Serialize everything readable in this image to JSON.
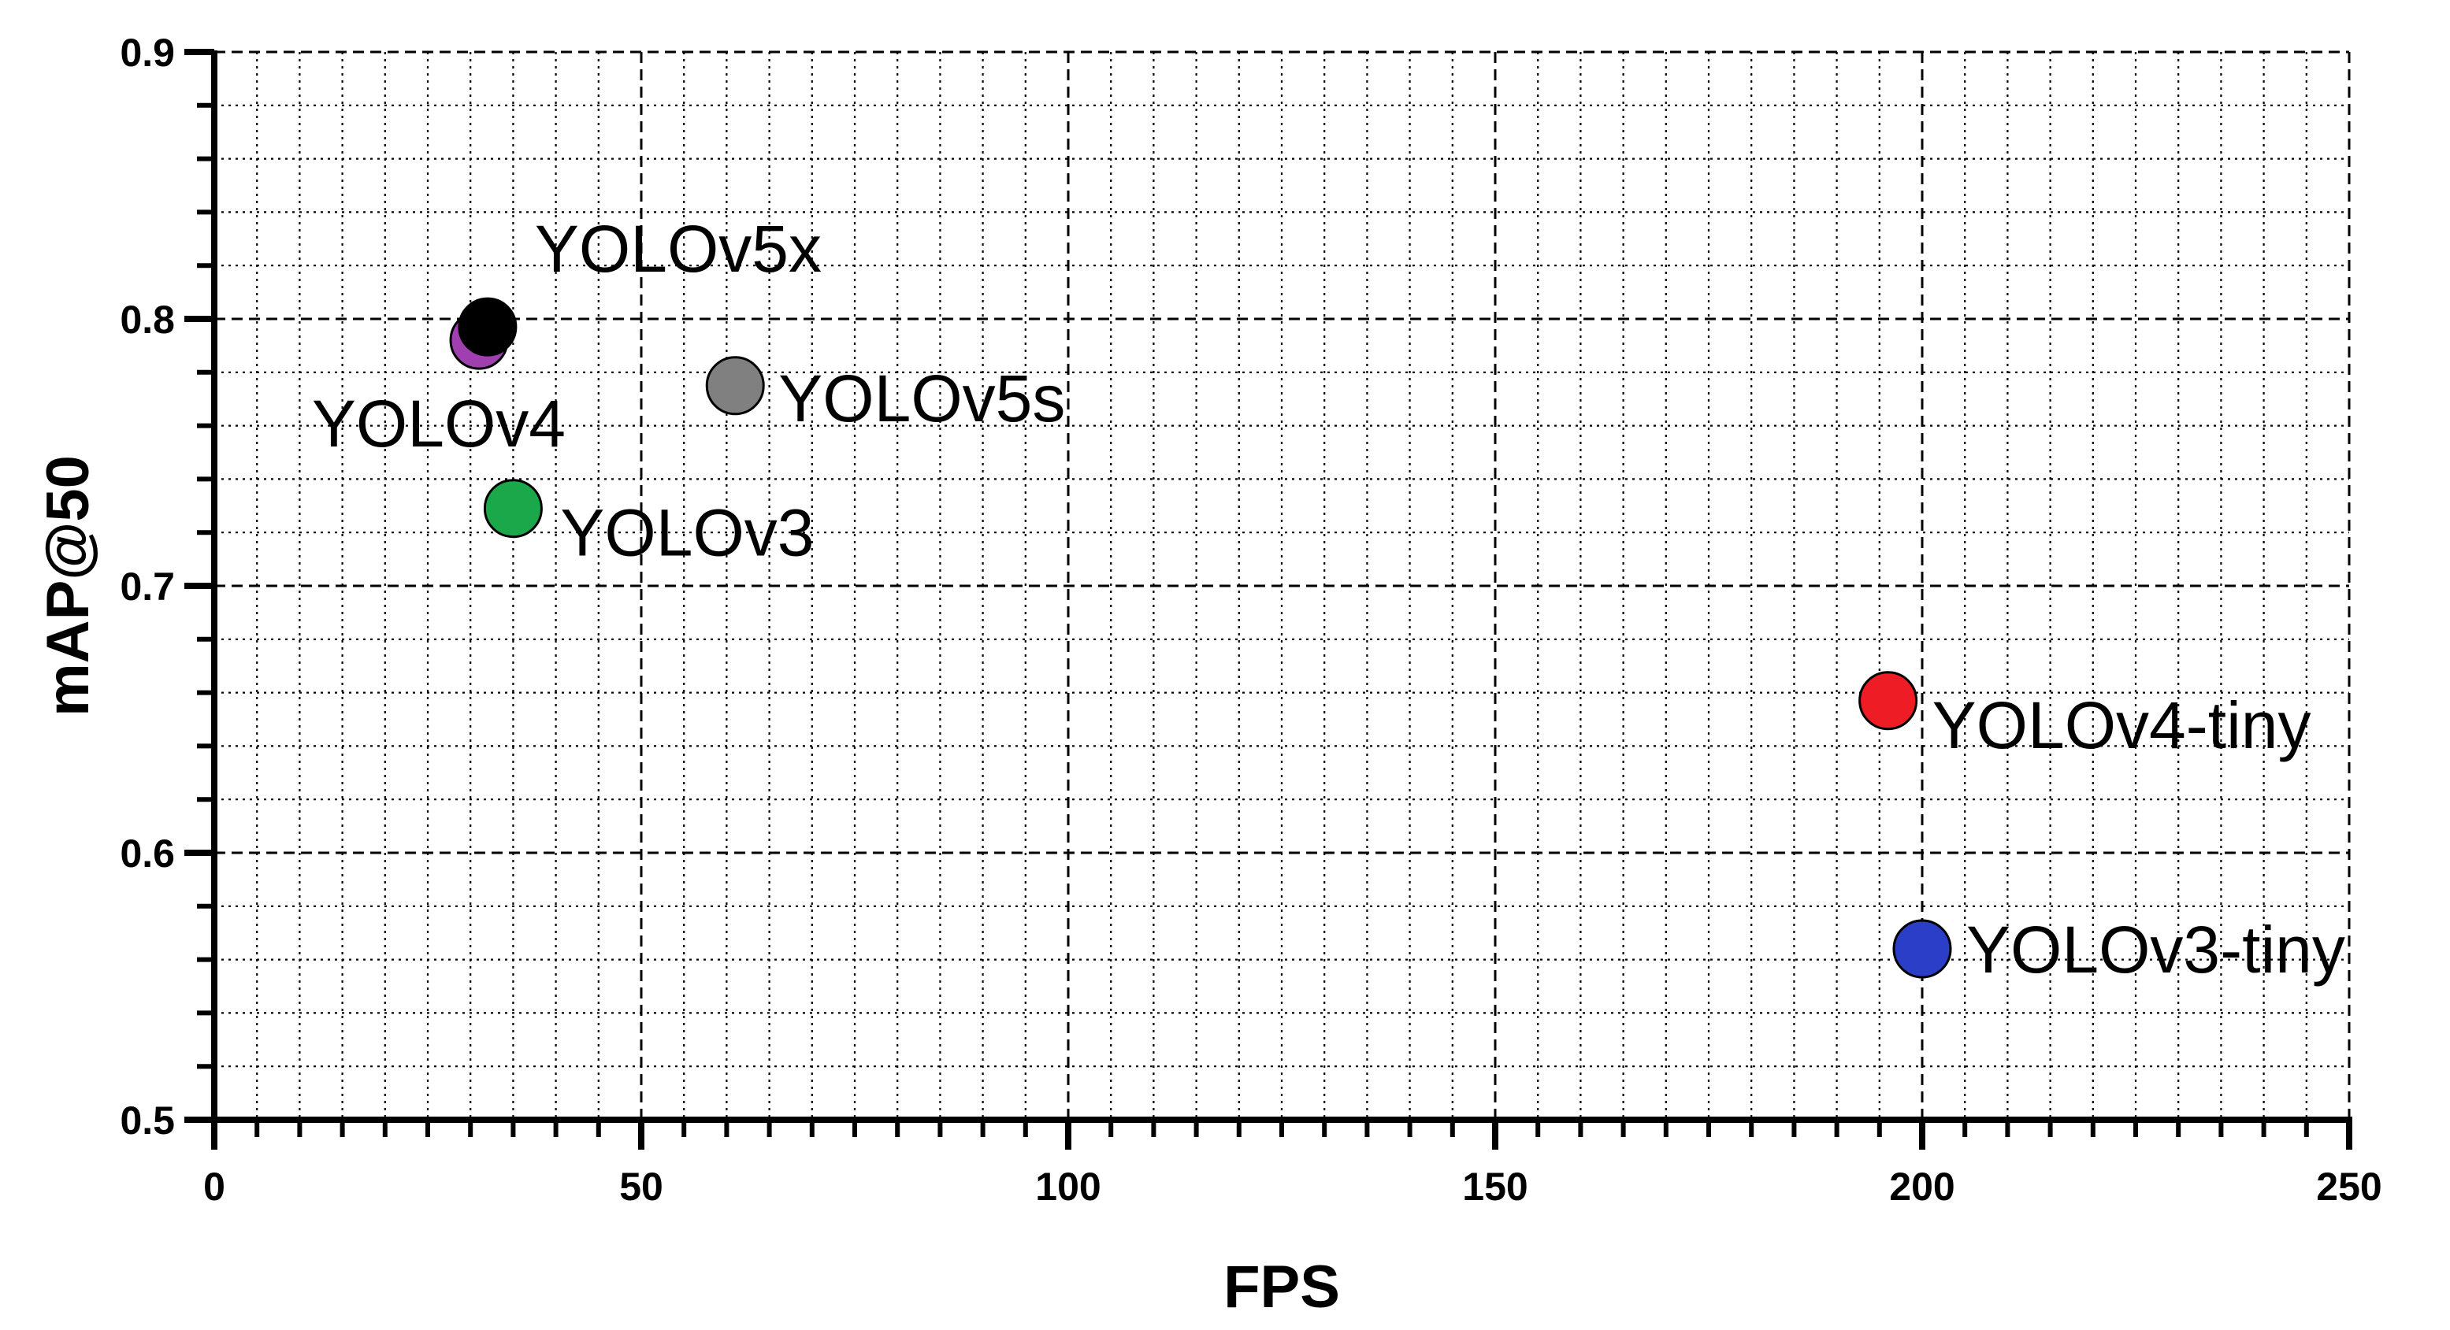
{
  "chart_data": {
    "type": "scatter",
    "title": "",
    "xlabel": "FPS",
    "ylabel": "mAP@50",
    "xlim": [
      0,
      250
    ],
    "ylim": [
      0.5,
      0.9
    ],
    "x_ticks": [
      0,
      50,
      100,
      150,
      200,
      250
    ],
    "y_ticks": [
      0.5,
      0.6,
      0.7,
      0.8,
      0.9
    ],
    "x_tick_labels": [
      "0",
      "50",
      "100",
      "150",
      "200",
      "250"
    ],
    "y_tick_labels": [
      "0.5",
      "0.6",
      "0.7",
      "0.8",
      "0.9"
    ],
    "grid": true,
    "legend": "none",
    "points": [
      {
        "label": "YOLOv5x",
        "x": 32,
        "y": 0.797,
        "color": "#000000"
      },
      {
        "label": "YOLOv4",
        "x": 31,
        "y": 0.792,
        "color": "#a040b0"
      },
      {
        "label": "YOLOv5s",
        "x": 61,
        "y": 0.775,
        "color": "#808080"
      },
      {
        "label": "YOLOv3",
        "x": 35,
        "y": 0.729,
        "color": "#1aa84a"
      },
      {
        "label": "YOLOv4-tiny",
        "x": 196,
        "y": 0.657,
        "color": "#ee1c25"
      },
      {
        "label": "YOLOv3-tiny",
        "x": 200,
        "y": 0.564,
        "color": "#2a3ec8"
      }
    ]
  }
}
